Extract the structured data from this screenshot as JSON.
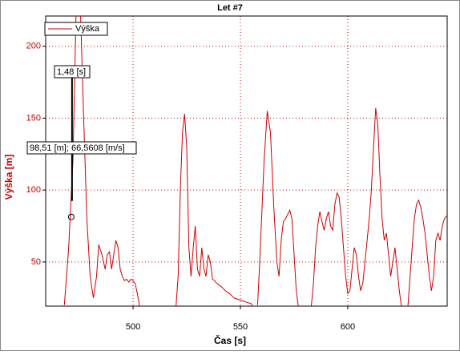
{
  "chart_data": {
    "type": "line",
    "title": "Let #7",
    "xlabel": "Čas [s]",
    "ylabel": "Výška [m]",
    "annotations": [
      "1,48 [s]",
      "98,51 [m]; 66,5608 [m/s]"
    ],
    "cursor": {
      "x": 471.2,
      "y": 81.3
    },
    "xlim": [
      459.3,
      646.3
    ],
    "ylim": [
      19.3,
      221
    ],
    "xticks": [
      500,
      550,
      600
    ],
    "yticks": [
      50,
      100,
      150,
      200
    ],
    "grid": true,
    "x": [
      468,
      470,
      472,
      473.5,
      475.5,
      477,
      478.5,
      480,
      481.5,
      483,
      484,
      485.5,
      487,
      488,
      489,
      490,
      491,
      492,
      493,
      494,
      495,
      496,
      497,
      498,
      499,
      500,
      501,
      502,
      503,
      511.5,
      520,
      521,
      522,
      523,
      524,
      525,
      526,
      527,
      528,
      529,
      530,
      531,
      532,
      533,
      534,
      535,
      536,
      537,
      538,
      539,
      541,
      543,
      545,
      547,
      549,
      551,
      553,
      555,
      556,
      557,
      558,
      559,
      561,
      562.5,
      564,
      565.5,
      567,
      568,
      569,
      570,
      571,
      572,
      573,
      574,
      575,
      576,
      577,
      580,
      583,
      584,
      585,
      586,
      587,
      588,
      589,
      590,
      591,
      592,
      593,
      594,
      595,
      596,
      597,
      598,
      599,
      600,
      601,
      602,
      603,
      604,
      605,
      606,
      607,
      608,
      609,
      610,
      611,
      612,
      613,
      614,
      615,
      616,
      617,
      618,
      619,
      620,
      621,
      622,
      623,
      624,
      625,
      626.5,
      628,
      629,
      630,
      631,
      632,
      633,
      634,
      635,
      636,
      637,
      638,
      639,
      640,
      641,
      642,
      643,
      644,
      645,
      646
    ],
    "series": [
      {
        "name": "Výška",
        "color": "#cc0000",
        "values": [
          20,
          60,
          120,
          225,
          225,
          150,
          80,
          40,
          25,
          40,
          62,
          55,
          45,
          55,
          57,
          45,
          55,
          65,
          60,
          45,
          40,
          37,
          38,
          36,
          38,
          37,
          35,
          28,
          19,
          null,
          19,
          40,
          100,
          140,
          153,
          130,
          60,
          40,
          60,
          75,
          45,
          40,
          60,
          45,
          40,
          55,
          50,
          38,
          37,
          35,
          33,
          30,
          28,
          25,
          24,
          23,
          22,
          21,
          18,
          null,
          20,
          50,
          120,
          155,
          140,
          90,
          50,
          40,
          65,
          78,
          80,
          83,
          86,
          80,
          55,
          30,
          19,
          null,
          19,
          35,
          60,
          75,
          85,
          78,
          72,
          80,
          85,
          75,
          72,
          90,
          98,
          95,
          80,
          60,
          40,
          28,
          30,
          45,
          60,
          55,
          40,
          30,
          35,
          50,
          65,
          80,
          100,
          130,
          157,
          145,
          110,
          80,
          65,
          70,
          55,
          40,
          50,
          60,
          45,
          30,
          19,
          null,
          19,
          40,
          60,
          80,
          90,
          93,
          88,
          80,
          70,
          55,
          40,
          30,
          40,
          65,
          70,
          65,
          75,
          80,
          82
        ]
      }
    ]
  }
}
